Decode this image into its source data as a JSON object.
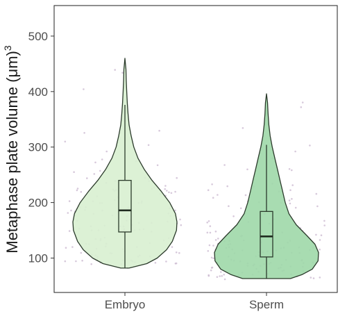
{
  "chart_data": {
    "type": "violin",
    "title": "",
    "xlabel": "",
    "ylabel": "Metaphase plate volume (μm)",
    "ylabel_superscript": "3",
    "ylim": [
      38,
      555
    ],
    "yticks": [
      100,
      200,
      300,
      400,
      500
    ],
    "grid": false,
    "legend": "none",
    "categories": [
      "Embryo",
      "Sperm"
    ],
    "series": [
      {
        "category": "Embryo",
        "color": "#d8f0d0",
        "outline": "#2b3a2b",
        "violin_range": [
          82,
          460
        ],
        "box": {
          "min": 82,
          "q1": 147,
          "median": 186,
          "q3": 240,
          "max": 376
        },
        "density_profile": [
          [
            82,
            0.08
          ],
          [
            90,
            0.42
          ],
          [
            100,
            0.62
          ],
          [
            115,
            0.8
          ],
          [
            130,
            0.91
          ],
          [
            150,
            0.99
          ],
          [
            165,
            1.0
          ],
          [
            180,
            0.97
          ],
          [
            200,
            0.86
          ],
          [
            220,
            0.7
          ],
          [
            240,
            0.52
          ],
          [
            260,
            0.37
          ],
          [
            280,
            0.25
          ],
          [
            300,
            0.17
          ],
          [
            320,
            0.12
          ],
          [
            340,
            0.08
          ],
          [
            360,
            0.06
          ],
          [
            380,
            0.045
          ],
          [
            400,
            0.035
          ],
          [
            420,
            0.025
          ],
          [
            440,
            0.02
          ],
          [
            460,
            0.0
          ]
        ]
      },
      {
        "category": "Sperm",
        "color": "#9ed8a8",
        "outline": "#2b3a2b",
        "violin_range": [
          63,
          396
        ],
        "box": {
          "min": 63,
          "q1": 102,
          "median": 139,
          "q3": 184,
          "max": 304
        },
        "density_profile": [
          [
            63,
            0.46
          ],
          [
            70,
            0.68
          ],
          [
            80,
            0.88
          ],
          [
            95,
            0.99
          ],
          [
            110,
            1.0
          ],
          [
            125,
            0.93
          ],
          [
            140,
            0.78
          ],
          [
            160,
            0.57
          ],
          [
            180,
            0.43
          ],
          [
            200,
            0.36
          ],
          [
            220,
            0.31
          ],
          [
            240,
            0.26
          ],
          [
            260,
            0.21
          ],
          [
            280,
            0.16
          ],
          [
            300,
            0.11
          ],
          [
            320,
            0.07
          ],
          [
            340,
            0.045
          ],
          [
            360,
            0.03
          ],
          [
            380,
            0.02
          ],
          [
            396,
            0.0
          ]
        ]
      }
    ],
    "jitter_point_color": "#c9b7cf"
  }
}
